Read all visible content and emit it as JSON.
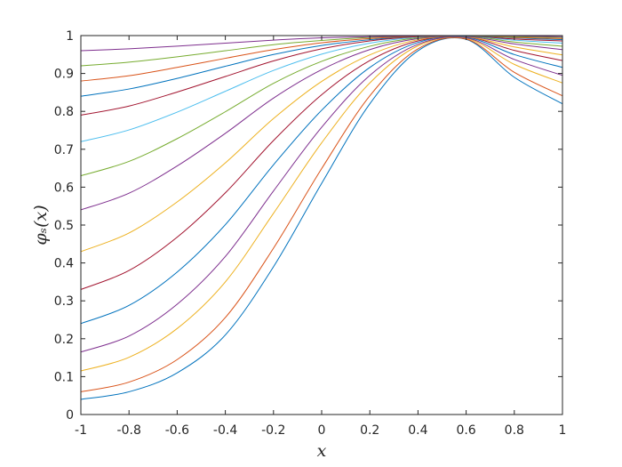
{
  "chart_data": {
    "type": "line",
    "xlabel": "x",
    "ylabel": "φₛ(x)",
    "x": [
      -1,
      -0.8,
      -0.6,
      -0.4,
      -0.2,
      0,
      0.2,
      0.4,
      0.6,
      0.8,
      1
    ],
    "xlim": [
      -1,
      1
    ],
    "xticks": [
      -1,
      -0.8,
      -0.6,
      -0.4,
      -0.2,
      0,
      0.2,
      0.4,
      0.6,
      0.8,
      1
    ],
    "ylim": [
      0,
      1
    ],
    "yticks": [
      0,
      0.1,
      0.2,
      0.3,
      0.4,
      0.5,
      0.6,
      0.7,
      0.8,
      0.9,
      1
    ],
    "grid": false,
    "box": true,
    "series": [
      {
        "color": "#0072BD",
        "values": [
          0.04,
          0.06,
          0.11,
          0.21,
          0.39,
          0.61,
          0.82,
          0.96,
          0.99,
          0.89,
          0.82
        ]
      },
      {
        "color": "#D95319",
        "values": [
          0.06,
          0.0855,
          0.145,
          0.256,
          0.439,
          0.649,
          0.841,
          0.965,
          0.991,
          0.903,
          0.841
        ]
      },
      {
        "color": "#EDB120",
        "values": [
          0.115,
          0.151,
          0.227,
          0.35,
          0.531,
          0.717,
          0.875,
          0.973,
          0.993,
          0.924,
          0.875
        ]
      },
      {
        "color": "#7E2F8E",
        "values": [
          0.165,
          0.207,
          0.291,
          0.417,
          0.59,
          0.758,
          0.895,
          0.977,
          0.994,
          0.937,
          0.895
        ]
      },
      {
        "color": "#0072BD",
        "values": [
          0.24,
          0.288,
          0.376,
          0.501,
          0.659,
          0.803,
          0.916,
          0.982,
          0.996,
          0.95,
          0.916
        ]
      },
      {
        "color": "#A2142F",
        "values": [
          0.33,
          0.38,
          0.468,
          0.585,
          0.723,
          0.844,
          0.934,
          0.986,
          0.997,
          0.961,
          0.934
        ]
      },
      {
        "color": "#EDB120",
        "values": [
          0.43,
          0.479,
          0.561,
          0.664,
          0.781,
          0.879,
          0.949,
          0.989,
          0.997,
          0.97,
          0.949
        ]
      },
      {
        "color": "#7E2F8E",
        "values": [
          0.54,
          0.584,
          0.656,
          0.742,
          0.835,
          0.91,
          0.963,
          0.992,
          0.998,
          0.978,
          0.963
        ]
      },
      {
        "color": "#77AC30",
        "values": [
          0.63,
          0.668,
          0.728,
          0.799,
          0.874,
          0.932,
          0.972,
          0.994,
          0.999,
          0.983,
          0.972
        ]
      },
      {
        "color": "#4DBEEE",
        "values": [
          0.72,
          0.751,
          0.798,
          0.853,
          0.908,
          0.951,
          0.98,
          0.996,
          0.999,
          0.988,
          0.98
        ]
      },
      {
        "color": "#A2142F",
        "values": [
          0.79,
          0.814,
          0.851,
          0.892,
          0.933,
          0.965,
          0.986,
          0.997,
          0.999,
          0.991,
          0.986
        ]
      },
      {
        "color": "#0072BD",
        "values": [
          0.84,
          0.859,
          0.887,
          0.919,
          0.95,
          0.974,
          0.989,
          0.998,
          0.999,
          0.994,
          0.989
        ]
      },
      {
        "color": "#D95319",
        "values": [
          0.88,
          0.894,
          0.916,
          0.94,
          0.963,
          0.981,
          0.992,
          0.998,
          1,
          0.995,
          0.992
        ]
      },
      {
        "color": "#77AC30",
        "values": [
          0.92,
          0.93,
          0.944,
          0.96,
          0.976,
          0.987,
          0.995,
          0.999,
          1,
          0.997,
          0.995
        ]
      },
      {
        "color": "#7E2F8E",
        "values": [
          0.96,
          0.965,
          0.972,
          0.98,
          0.988,
          0.994,
          0.997,
          0.999,
          1,
          0.999,
          0.997
        ]
      }
    ]
  }
}
